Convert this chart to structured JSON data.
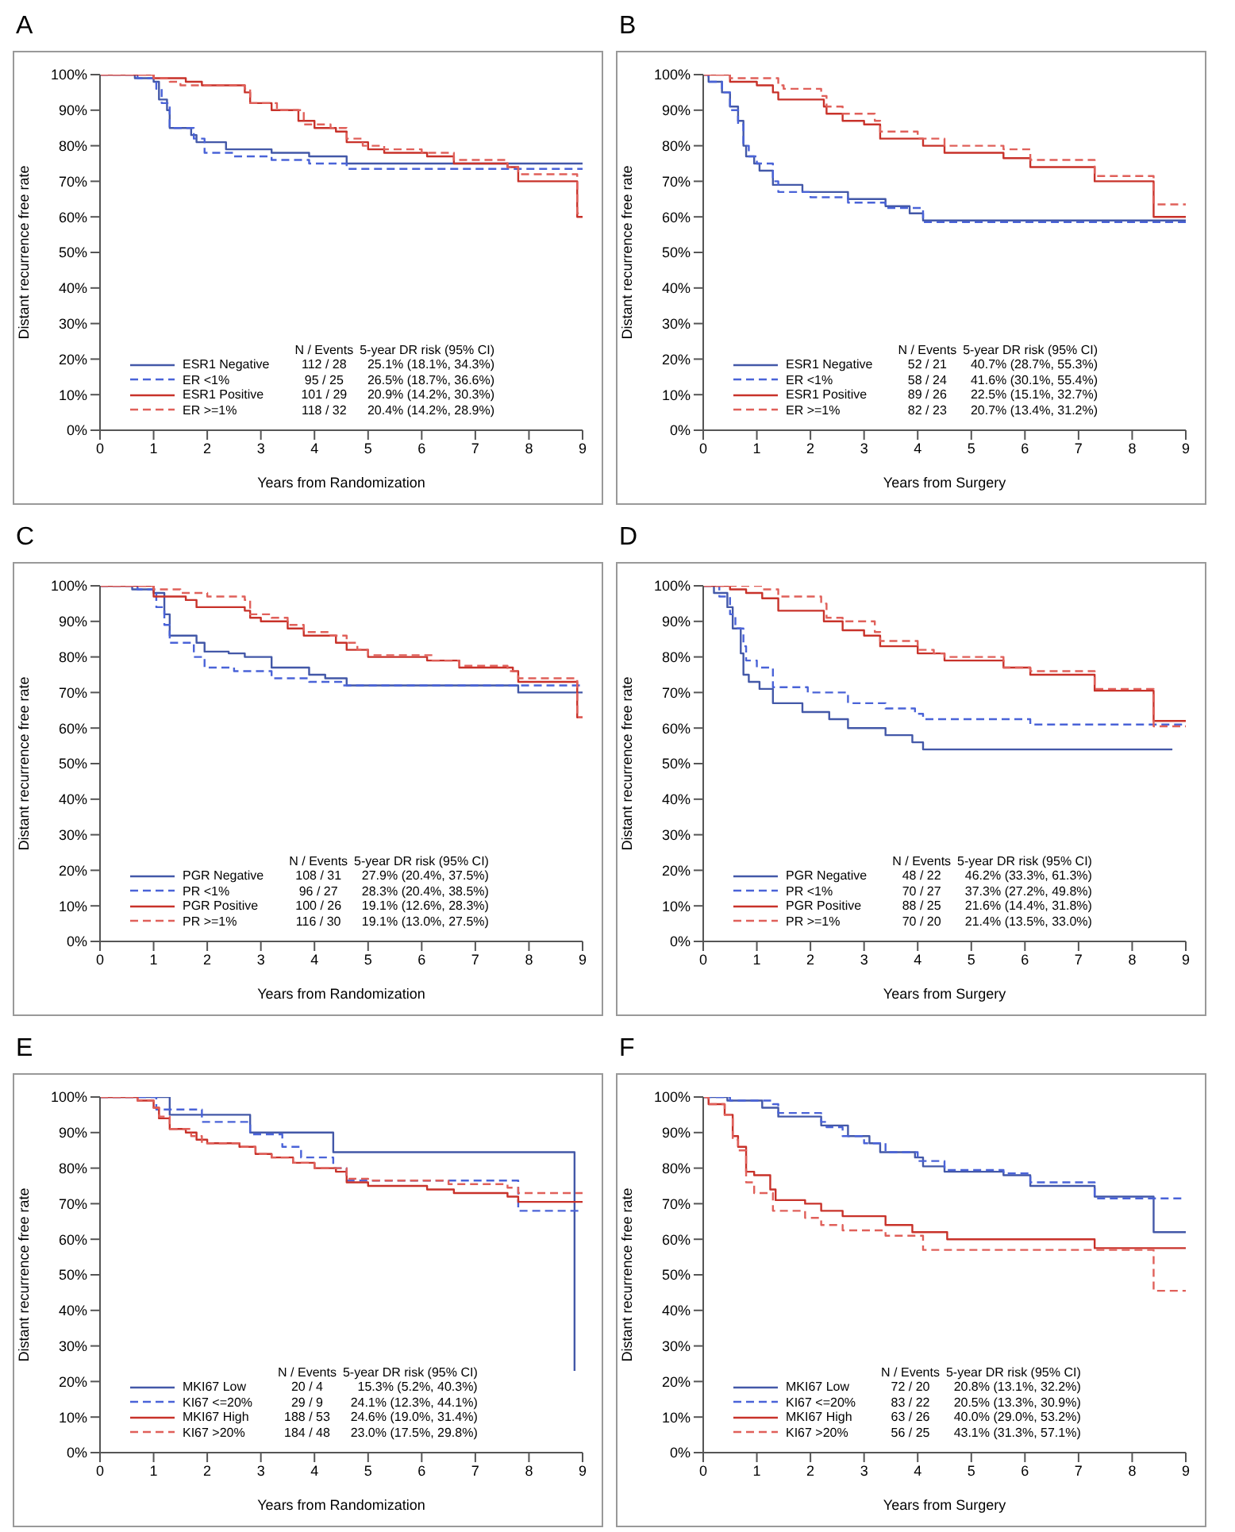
{
  "chart_data": [
    {
      "type": "step",
      "title": "A",
      "xlabel": "Years from Randomization",
      "ylabel": "Distant recurrence free rate",
      "xlim": [
        0,
        9
      ],
      "xticks": [
        0,
        1,
        2,
        3,
        4,
        5,
        6,
        7,
        8,
        9
      ],
      "ylim": [
        0,
        100
      ],
      "yticks": [
        {
          "value": 0,
          "label": "0%"
        },
        {
          "value": 10,
          "label": "10%"
        },
        {
          "value": 20,
          "label": "20%"
        },
        {
          "value": 30,
          "label": "30%"
        },
        {
          "value": 40,
          "label": "40%"
        },
        {
          "value": 50,
          "label": "50%"
        },
        {
          "value": 60,
          "label": "60%"
        },
        {
          "value": 70,
          "label": "70%"
        },
        {
          "value": 80,
          "label": "80%"
        },
        {
          "value": 90,
          "label": "90%"
        },
        {
          "value": 100,
          "label": "100%"
        }
      ],
      "legend": "bottom left",
      "annotations": [
        "N / Events",
        "5-year DR risk (95% CI)",
        "112 / 28",
        "25.1% (18.1%, 34.3%)",
        "95 / 25",
        "26.5% (18.7%, 36.6%)",
        "101 / 29",
        "20.9% (14.2%, 30.3%)",
        "118 / 32",
        "20.4% (14.2%, 28.9%)"
      ],
      "series": [
        {
          "name": "ESR1 Negative",
          "color": "#4358a8",
          "line_style": "solid",
          "x": [
            0,
            0.65,
            1.0,
            1.1,
            1.25,
            1.3,
            1.7,
            1.8,
            2.35,
            3.2,
            3.9,
            4.6,
            9
          ],
          "values": [
            100,
            99,
            98,
            93,
            90,
            85,
            83,
            81,
            79,
            78,
            77,
            75,
            75
          ]
        },
        {
          "name": "ER <1%",
          "color": "#4a63d8",
          "line_style": "dashed",
          "x": [
            0,
            0.7,
            1.05,
            1.15,
            1.3,
            1.75,
            1.95,
            2.5,
            3.2,
            3.9,
            4.6,
            9
          ],
          "values": [
            100,
            99,
            96,
            92,
            85,
            82,
            78,
            77,
            76,
            75,
            73.5,
            73.5
          ]
        },
        {
          "name": "ESR1 Positive",
          "color": "#c8322a",
          "line_style": "solid",
          "x": [
            0,
            1.0,
            1.6,
            1.9,
            2.7,
            2.8,
            3.2,
            3.7,
            4.0,
            4.4,
            4.6,
            5.0,
            5.3,
            6.1,
            6.6,
            7.6,
            7.8,
            8.9,
            9
          ],
          "values": [
            100,
            99,
            98,
            97,
            95,
            92,
            90,
            87,
            85,
            84,
            81,
            79,
            78,
            77,
            75,
            74,
            70,
            60,
            60
          ]
        },
        {
          "name": "ER >=1%",
          "color": "#e0605a",
          "line_style": "dashed",
          "x": [
            0,
            1.0,
            1.3,
            1.5,
            2.7,
            2.8,
            3.3,
            3.8,
            4.3,
            4.6,
            4.9,
            5.3,
            6.0,
            6.6,
            7.6,
            7.8,
            8.9,
            9
          ],
          "values": [
            100,
            99,
            98,
            97,
            96,
            92,
            90,
            86,
            85,
            82,
            80,
            79,
            78,
            76,
            74,
            72,
            61,
            61
          ]
        }
      ]
    },
    {
      "type": "step",
      "title": "B",
      "xlabel": "Years from Surgery",
      "ylabel": "Distant recurrence free rate",
      "xlim": [
        0,
        9
      ],
      "xticks": [
        0,
        1,
        2,
        3,
        4,
        5,
        6,
        7,
        8,
        9
      ],
      "ylim": [
        0,
        100
      ],
      "yticks": [
        {
          "value": 0,
          "label": "0%"
        },
        {
          "value": 10,
          "label": "10%"
        },
        {
          "value": 20,
          "label": "20%"
        },
        {
          "value": 30,
          "label": "30%"
        },
        {
          "value": 40,
          "label": "40%"
        },
        {
          "value": 50,
          "label": "50%"
        },
        {
          "value": 60,
          "label": "60%"
        },
        {
          "value": 70,
          "label": "70%"
        },
        {
          "value": 80,
          "label": "80%"
        },
        {
          "value": 90,
          "label": "90%"
        },
        {
          "value": 100,
          "label": "100%"
        }
      ],
      "legend": "bottom left",
      "annotations": [
        "N / Events",
        "5-year DR risk (95% CI)",
        "52 / 21",
        "40.7% (28.7%, 55.3%)",
        "58 / 24",
        "41.6% (30.1%, 55.4%)",
        "89 / 26",
        "22.5% (15.1%, 32.7%)",
        "82 / 23",
        "20.7% (13.4%, 31.2%)"
      ],
      "series": [
        {
          "name": "ESR1 Negative",
          "color": "#4358a8",
          "line_style": "solid",
          "x": [
            0,
            0.1,
            0.35,
            0.5,
            0.65,
            0.75,
            0.8,
            0.95,
            1.05,
            1.3,
            1.85,
            2.7,
            3.4,
            3.85,
            4.1,
            9
          ],
          "values": [
            100,
            98,
            95,
            91,
            87,
            80,
            77,
            75,
            73,
            69,
            67,
            65,
            63,
            61,
            59,
            59
          ]
        },
        {
          "name": "ER <1%",
          "color": "#4a63d8",
          "line_style": "dashed",
          "x": [
            0,
            0.1,
            0.35,
            0.5,
            0.65,
            0.75,
            0.85,
            1.0,
            1.3,
            1.4,
            2.0,
            2.7,
            3.4,
            4.1,
            9
          ],
          "values": [
            100,
            98,
            95,
            90,
            86,
            80,
            77,
            75,
            70,
            67,
            65.5,
            64,
            62.5,
            58.5,
            58.5
          ]
        },
        {
          "name": "ESR1 Positive",
          "color": "#c8322a",
          "line_style": "solid",
          "x": [
            0,
            0.5,
            1.0,
            1.3,
            1.4,
            2.25,
            2.3,
            2.6,
            3.0,
            3.3,
            4.1,
            4.5,
            5.6,
            6.1,
            7.3,
            8.4,
            9
          ],
          "values": [
            100,
            98,
            97,
            95,
            93,
            91,
            89,
            87,
            86,
            82,
            80,
            78,
            76.5,
            74,
            70,
            60,
            60
          ]
        },
        {
          "name": "ER >=1%",
          "color": "#e0605a",
          "line_style": "dashed",
          "x": [
            0,
            0.5,
            1.4,
            1.5,
            2.2,
            2.3,
            2.6,
            3.2,
            3.3,
            4.0,
            4.5,
            5.6,
            6.1,
            7.3,
            8.4,
            9
          ],
          "values": [
            100,
            99,
            97,
            96,
            94,
            91,
            89,
            87,
            84,
            82,
            80,
            79,
            76,
            71.5,
            63.5,
            63.5
          ]
        }
      ]
    },
    {
      "type": "step",
      "title": "C",
      "xlabel": "Years from Randomization",
      "ylabel": "Distant recurrence free rate",
      "xlim": [
        0,
        9
      ],
      "xticks": [
        0,
        1,
        2,
        3,
        4,
        5,
        6,
        7,
        8,
        9
      ],
      "ylim": [
        0,
        100
      ],
      "yticks": [
        {
          "value": 0,
          "label": "0%"
        },
        {
          "value": 10,
          "label": "10%"
        },
        {
          "value": 20,
          "label": "20%"
        },
        {
          "value": 30,
          "label": "30%"
        },
        {
          "value": 40,
          "label": "40%"
        },
        {
          "value": 50,
          "label": "50%"
        },
        {
          "value": 60,
          "label": "60%"
        },
        {
          "value": 70,
          "label": "70%"
        },
        {
          "value": 80,
          "label": "80%"
        },
        {
          "value": 90,
          "label": "90%"
        },
        {
          "value": 100,
          "label": "100%"
        }
      ],
      "legend": "bottom left",
      "annotations": [
        "N / Events",
        "5-year DR risk (95% CI)",
        "108 / 31",
        "27.9% (20.4%, 37.5%)",
        "96 / 27",
        "28.3% (20.4%, 38.5%)",
        "100 / 26",
        "19.1% (12.6%, 28.3%)",
        "116 / 30",
        "19.1% (13.0%, 27.5%)"
      ],
      "series": [
        {
          "name": "PGR Negative",
          "color": "#4358a8",
          "line_style": "solid",
          "x": [
            0,
            0.6,
            1.0,
            1.2,
            1.3,
            1.8,
            1.95,
            2.4,
            2.7,
            3.2,
            3.9,
            4.2,
            4.6,
            7.8,
            9
          ],
          "values": [
            100,
            99,
            98,
            92,
            86,
            84,
            81.5,
            81,
            80,
            77,
            75,
            74,
            72,
            70,
            70
          ]
        },
        {
          "name": "PR <1%",
          "color": "#4a63d8",
          "line_style": "dashed",
          "x": [
            0,
            0.7,
            1.05,
            1.2,
            1.3,
            1.75,
            1.95,
            2.5,
            3.2,
            3.9,
            4.5,
            9
          ],
          "values": [
            100,
            99,
            94,
            89,
            84,
            80,
            77,
            76,
            74,
            73,
            72,
            72
          ]
        },
        {
          "name": "PGR Positive",
          "color": "#c8322a",
          "line_style": "solid",
          "x": [
            0,
            1.0,
            1.6,
            1.8,
            2.7,
            2.8,
            3.0,
            3.5,
            3.8,
            4.4,
            4.6,
            5.0,
            6.1,
            6.7,
            7.7,
            7.8,
            8.9,
            9
          ],
          "values": [
            100,
            97,
            96,
            94,
            93,
            91,
            90,
            88,
            86,
            84,
            82,
            80,
            79,
            77,
            76,
            73,
            63,
            63
          ]
        },
        {
          "name": "PR >=1%",
          "color": "#e0605a",
          "line_style": "dashed",
          "x": [
            0,
            1.0,
            1.5,
            2.0,
            2.7,
            2.8,
            3.2,
            3.5,
            3.8,
            4.3,
            4.6,
            4.8,
            5.0,
            6.2,
            6.7,
            7.6,
            7.8,
            8.9,
            9
          ],
          "values": [
            100,
            99,
            98,
            97,
            96,
            92,
            91,
            89,
            87,
            86,
            84,
            82,
            80.5,
            79,
            77.5,
            76,
            74,
            63,
            63
          ]
        }
      ]
    },
    {
      "type": "step",
      "title": "D",
      "xlabel": "Years from Surgery",
      "ylabel": "Distant recurrence free rate",
      "xlim": [
        0,
        9
      ],
      "xticks": [
        0,
        1,
        2,
        3,
        4,
        5,
        6,
        7,
        8,
        9
      ],
      "ylim": [
        0,
        100
      ],
      "yticks": [
        {
          "value": 0,
          "label": "0%"
        },
        {
          "value": 10,
          "label": "10%"
        },
        {
          "value": 20,
          "label": "20%"
        },
        {
          "value": 30,
          "label": "30%"
        },
        {
          "value": 40,
          "label": "40%"
        },
        {
          "value": 50,
          "label": "50%"
        },
        {
          "value": 60,
          "label": "60%"
        },
        {
          "value": 70,
          "label": "70%"
        },
        {
          "value": 80,
          "label": "80%"
        },
        {
          "value": 90,
          "label": "90%"
        },
        {
          "value": 100,
          "label": "100%"
        }
      ],
      "legend": "bottom left",
      "annotations": [
        "N / Events",
        "5-year DR risk (95% CI)",
        "48 / 22",
        "46.2% (33.3%, 61.3%)",
        "70 / 27",
        "37.3% (27.2%, 49.8%)",
        "88 / 25",
        "21.6% (14.4%, 31.8%)",
        "70 / 20",
        "21.4% (13.5%, 33.0%)"
      ],
      "series": [
        {
          "name": "PGR Negative",
          "color": "#4358a8",
          "line_style": "solid",
          "x": [
            0,
            0.2,
            0.45,
            0.55,
            0.7,
            0.75,
            0.85,
            1.05,
            1.3,
            1.85,
            2.35,
            2.7,
            3.4,
            3.9,
            4.1,
            8.75
          ],
          "values": [
            100,
            98,
            94,
            88,
            81,
            75,
            73,
            71,
            67,
            64.5,
            62.5,
            60,
            58,
            56,
            54,
            54
          ]
        },
        {
          "name": "PR <1%",
          "color": "#4a63d8",
          "line_style": "dashed",
          "x": [
            0,
            0.3,
            0.5,
            0.6,
            0.75,
            0.8,
            1.0,
            1.3,
            1.95,
            2.7,
            3.4,
            3.95,
            4.1,
            6.1,
            9
          ],
          "values": [
            100,
            97,
            92,
            88,
            83,
            79,
            77,
            71.5,
            70,
            67,
            65.5,
            64,
            62.5,
            61,
            61
          ]
        },
        {
          "name": "PGR Positive",
          "color": "#c8322a",
          "line_style": "solid",
          "x": [
            0,
            0.5,
            0.8,
            1.1,
            1.4,
            2.25,
            2.6,
            3.0,
            3.3,
            4.0,
            4.5,
            5.6,
            6.1,
            7.3,
            8.4,
            9
          ],
          "values": [
            100,
            99,
            98,
            96.5,
            93,
            90,
            87.5,
            86,
            83,
            81,
            79,
            77,
            75,
            70.5,
            62,
            62
          ]
        },
        {
          "name": "PR >=1%",
          "color": "#e0605a",
          "line_style": "dashed",
          "x": [
            0,
            1.1,
            1.4,
            2.2,
            2.3,
            2.6,
            3.2,
            3.3,
            4.0,
            4.3,
            4.5,
            5.6,
            6.1,
            7.3,
            8.4,
            9
          ],
          "values": [
            100,
            99,
            97,
            95,
            91,
            90,
            87,
            84.5,
            82,
            81,
            80,
            77,
            76,
            71,
            60.5,
            60.5
          ]
        }
      ]
    },
    {
      "type": "step",
      "title": "E",
      "xlabel": "Years from Randomization",
      "ylabel": "Distant recurrence free rate",
      "xlim": [
        0,
        9
      ],
      "xticks": [
        0,
        1,
        2,
        3,
        4,
        5,
        6,
        7,
        8,
        9
      ],
      "ylim": [
        0,
        100
      ],
      "yticks": [
        {
          "value": 0,
          "label": "0%"
        },
        {
          "value": 10,
          "label": "10%"
        },
        {
          "value": 20,
          "label": "20%"
        },
        {
          "value": 30,
          "label": "30%"
        },
        {
          "value": 40,
          "label": "40%"
        },
        {
          "value": 50,
          "label": "50%"
        },
        {
          "value": 60,
          "label": "60%"
        },
        {
          "value": 70,
          "label": "70%"
        },
        {
          "value": 80,
          "label": "80%"
        },
        {
          "value": 90,
          "label": "90%"
        },
        {
          "value": 100,
          "label": "100%"
        }
      ],
      "legend": "bottom left",
      "annotations": [
        "N / Events",
        "5-year DR risk (95% CI)",
        "20 / 4",
        "15.3% (5.2%, 40.3%)",
        "29 / 9",
        "24.1% (12.3%, 44.1%)",
        "188 / 53",
        "24.6% (19.0%, 31.4%)",
        "184 / 48",
        "23.0% (17.5%, 29.8%)"
      ],
      "series": [
        {
          "name": "MKI67 Low",
          "color": "#4358a8",
          "line_style": "solid",
          "x": [
            0,
            1.3,
            2.8,
            4.35,
            8.85
          ],
          "values": [
            100,
            95,
            90,
            84.5,
            23
          ]
        },
        {
          "name": "KI67 <=20%",
          "color": "#4a63d8",
          "line_style": "dashed",
          "x": [
            0,
            1.05,
            1.9,
            2.8,
            3.4,
            3.75,
            4.35,
            4.6,
            7.8,
            9
          ],
          "values": [
            100,
            96.5,
            93,
            89.5,
            86,
            83,
            80,
            76.5,
            68,
            68
          ]
        },
        {
          "name": "MKI67 High",
          "color": "#c8322a",
          "line_style": "solid",
          "x": [
            0,
            0.7,
            1.0,
            1.1,
            1.3,
            1.6,
            1.8,
            2.0,
            2.6,
            2.9,
            3.2,
            3.6,
            4.0,
            4.4,
            4.6,
            5.0,
            6.1,
            6.6,
            7.6,
            7.8,
            9
          ],
          "values": [
            100,
            99,
            97,
            94,
            91,
            90,
            88,
            87,
            86,
            84,
            83,
            81.5,
            80,
            79,
            76,
            75,
            74,
            73,
            72,
            70.5,
            70.5
          ]
        },
        {
          "name": "KI67 >20%",
          "color": "#e0605a",
          "line_style": "dashed",
          "x": [
            0,
            0.7,
            1.0,
            1.1,
            1.3,
            1.7,
            1.9,
            2.6,
            2.9,
            3.2,
            3.6,
            4.0,
            4.6,
            5.0,
            6.5,
            7.6,
            7.8,
            9
          ],
          "values": [
            100,
            99,
            97,
            94.5,
            91,
            89,
            87,
            86,
            84,
            83,
            81.5,
            80,
            77,
            76.5,
            75.5,
            74.5,
            73,
            73
          ]
        }
      ]
    },
    {
      "type": "step",
      "title": "F",
      "xlabel": "Years from Surgery",
      "ylabel": "Distant recurrence free rate",
      "xlim": [
        0,
        9
      ],
      "xticks": [
        0,
        1,
        2,
        3,
        4,
        5,
        6,
        7,
        8,
        9
      ],
      "ylim": [
        0,
        100
      ],
      "yticks": [
        {
          "value": 0,
          "label": "0%"
        },
        {
          "value": 10,
          "label": "10%"
        },
        {
          "value": 20,
          "label": "20%"
        },
        {
          "value": 30,
          "label": "30%"
        },
        {
          "value": 40,
          "label": "40%"
        },
        {
          "value": 50,
          "label": "50%"
        },
        {
          "value": 60,
          "label": "60%"
        },
        {
          "value": 70,
          "label": "70%"
        },
        {
          "value": 80,
          "label": "80%"
        },
        {
          "value": 90,
          "label": "90%"
        },
        {
          "value": 100,
          "label": "100%"
        }
      ],
      "legend": "bottom left",
      "annotations": [
        "N / Events",
        "5-year DR risk (95% CI)",
        "72 / 20",
        "20.8% (13.1%, 32.2%)",
        "83 / 22",
        "20.5% (13.3%, 30.9%)",
        "63 / 26",
        "40.0% (29.0%, 53.2%)",
        "56 / 25",
        "43.1% (31.3%, 57.1%)"
      ],
      "series": [
        {
          "name": "MKI67 Low",
          "color": "#4358a8",
          "line_style": "solid",
          "x": [
            0,
            0.45,
            1.1,
            1.4,
            2.2,
            2.7,
            3.1,
            3.3,
            3.95,
            4.1,
            4.5,
            5.6,
            6.1,
            7.3,
            8.4,
            9
          ],
          "values": [
            100,
            99,
            97,
            94.5,
            92,
            89,
            87,
            84.5,
            83,
            80.5,
            79,
            78,
            75,
            72,
            62,
            62
          ]
        },
        {
          "name": "KI67 <=20%",
          "color": "#4a63d8",
          "line_style": "dashed",
          "x": [
            0,
            0.5,
            1.3,
            1.4,
            2.2,
            2.3,
            2.6,
            3.0,
            3.4,
            4.0,
            4.5,
            5.6,
            6.1,
            7.3,
            9
          ],
          "values": [
            100,
            99,
            98,
            95.5,
            93,
            91.5,
            89,
            87,
            84.5,
            82,
            79.5,
            78.5,
            76,
            71.5,
            71.5
          ]
        },
        {
          "name": "MKI67 High",
          "color": "#c8322a",
          "line_style": "solid",
          "x": [
            0,
            0.1,
            0.4,
            0.55,
            0.65,
            0.8,
            0.95,
            1.25,
            1.35,
            1.9,
            2.2,
            2.6,
            3.4,
            3.9,
            4.55,
            7.3,
            9
          ],
          "values": [
            100,
            98,
            95,
            89,
            86,
            79,
            78,
            74,
            71,
            70,
            68,
            66.5,
            64,
            62,
            60,
            57.5,
            57.5
          ]
        },
        {
          "name": "KI67 >20%",
          "color": "#e0605a",
          "line_style": "dashed",
          "x": [
            0,
            0.1,
            0.4,
            0.55,
            0.65,
            0.8,
            0.95,
            1.3,
            1.9,
            2.2,
            2.6,
            3.4,
            4.1,
            8.4,
            9
          ],
          "values": [
            100,
            98,
            95,
            88,
            85,
            76,
            73,
            68,
            66,
            64,
            62.5,
            61,
            57,
            45.5,
            45.5
          ]
        }
      ]
    }
  ]
}
